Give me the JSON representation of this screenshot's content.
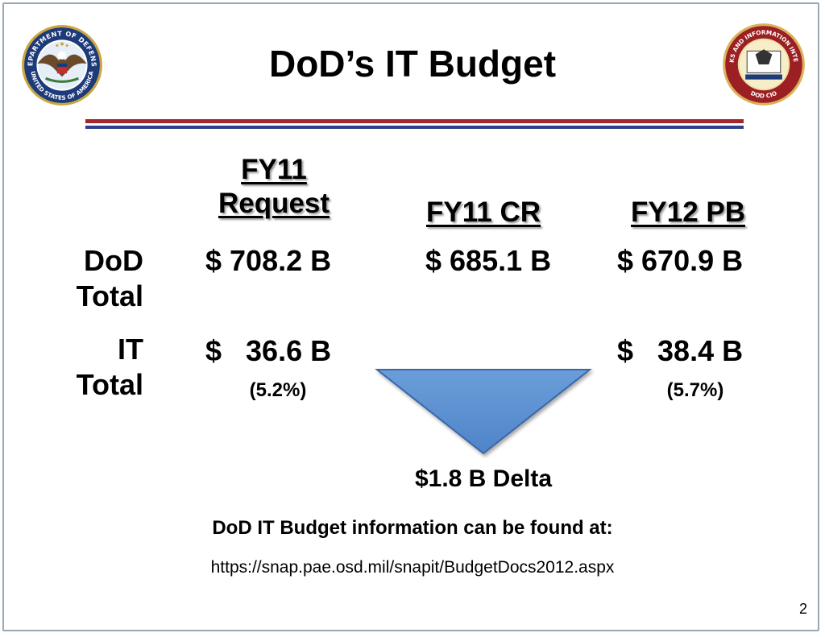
{
  "slide": {
    "title": "DoD’s IT Budget",
    "page_number": "2"
  },
  "columns": [
    {
      "line1": "FY11",
      "line2": "Request"
    },
    {
      "label": "FY11 CR"
    },
    {
      "label": "FY12 PB"
    }
  ],
  "rows": {
    "dod_total": {
      "label_line1": "DoD",
      "label_line2": "Total",
      "values": [
        "$ 708.2 B",
        "$ 685.1 B",
        "$ 670.9 B"
      ]
    },
    "it_total": {
      "label_line1": "IT",
      "label_line2": "Total",
      "values": [
        "$   36.6 B",
        "$   38.4 B"
      ],
      "percents": [
        "(5.2%)",
        "(5.7%)"
      ]
    }
  },
  "delta": {
    "label": "$1.8 B Delta",
    "color": "#5b8fd1"
  },
  "footer": {
    "info": "DoD IT Budget information can be found at:",
    "url": "https://snap.pae.osd.mil/snapit/BudgetDocs2012.aspx"
  },
  "colors": {
    "rule_red": "#a2262c",
    "rule_blue": "#2d3f8e"
  },
  "logos": {
    "left": "department-of-defense-seal",
    "right": "networks-and-information-integration-seal"
  }
}
